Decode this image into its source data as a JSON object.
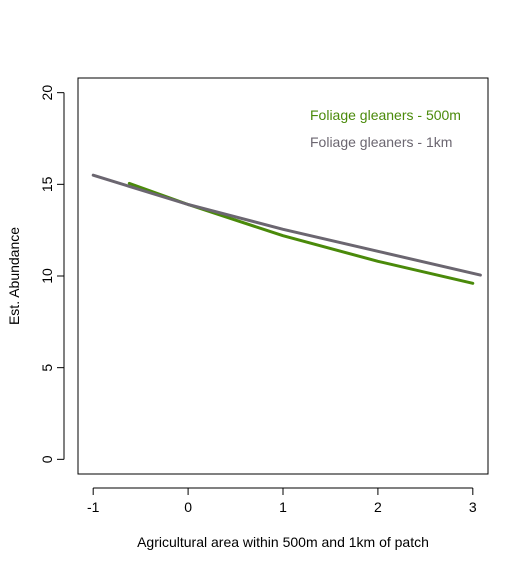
{
  "chart_data": {
    "type": "line",
    "title": "",
    "xlabel": "Agricultural area within 500m and 1km of patch",
    "ylabel": "Est. Abundance",
    "xlim": [
      -1.16,
      3.16
    ],
    "ylim": [
      -0.8,
      20.8
    ],
    "x_ticks": [
      -1,
      0,
      1,
      2,
      3
    ],
    "x_tick_labels": [
      "-1",
      "0",
      "1",
      "2",
      "3"
    ],
    "y_ticks": [
      0,
      5,
      10,
      15,
      20
    ],
    "y_tick_labels": [
      "0",
      "5",
      "10",
      "15",
      "20"
    ],
    "grid": false,
    "legend_position": "top-right",
    "series": [
      {
        "name": "Foliage gleaners - 500m",
        "color": "#4a8a0a",
        "x": [
          -0.62,
          0.0,
          1.0,
          2.0,
          3.0
        ],
        "y": [
          15.05,
          13.9,
          12.2,
          10.8,
          9.6
        ]
      },
      {
        "name": "Foliage gleaners - 1km",
        "color": "#6b6670",
        "x": [
          -1.0,
          0.0,
          1.0,
          2.0,
          3.08
        ],
        "y": [
          15.5,
          13.9,
          12.55,
          11.35,
          10.05
        ]
      }
    ]
  }
}
